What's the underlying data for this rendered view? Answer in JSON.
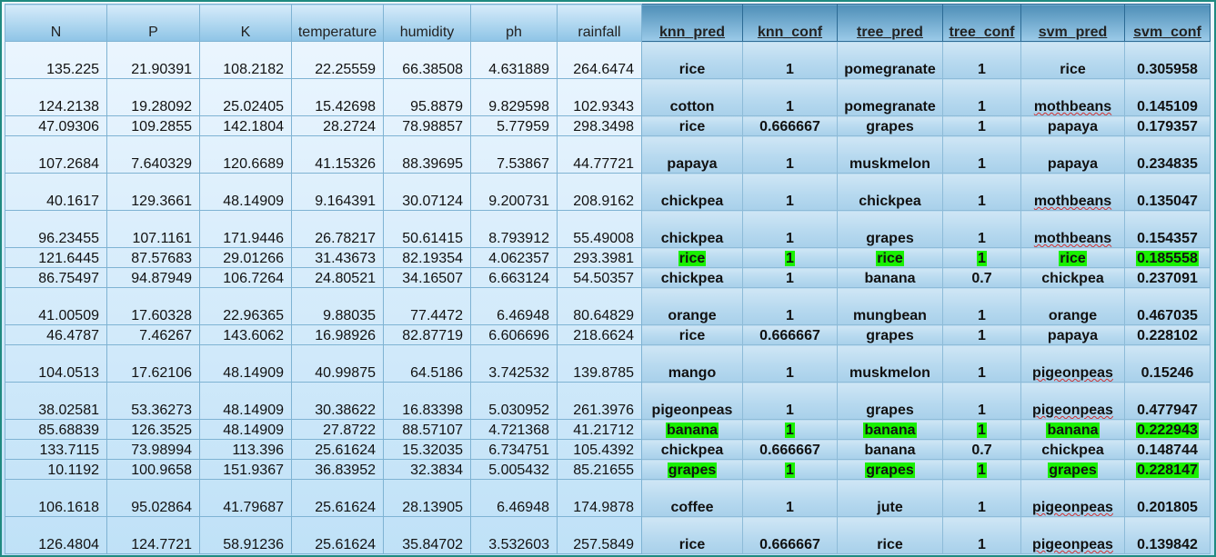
{
  "table": {
    "headers": [
      "N",
      "P",
      "K",
      "temperature",
      "humidity",
      "ph",
      "rainfall",
      "knn_pred",
      "knn_conf",
      "tree_pred",
      "tree_conf",
      "svm_pred",
      "svm_conf"
    ],
    "rows": [
      {
        "cells": [
          "135.225",
          "21.90391",
          "108.2182",
          "22.25559",
          "66.38508",
          "4.631889",
          "264.6474",
          "rice",
          "1",
          "pomegranate",
          "1",
          "rice",
          "0.305958"
        ],
        "tall": true,
        "highlight": false
      },
      {
        "cells": [
          "124.2138",
          "19.28092",
          "25.02405",
          "15.42698",
          "95.8879",
          "9.829598",
          "102.9343",
          "cotton",
          "1",
          "pomegranate",
          "1",
          "mothbeans",
          "0.145109"
        ],
        "tall": true,
        "highlight": false
      },
      {
        "cells": [
          "47.09306",
          "109.2855",
          "142.1804",
          "28.2724",
          "78.98857",
          "5.77959",
          "298.3498",
          "rice",
          "0.666667",
          "grapes",
          "1",
          "papaya",
          "0.179357"
        ],
        "tall": false,
        "highlight": false
      },
      {
        "cells": [
          "107.2684",
          "7.640329",
          "120.6689",
          "41.15326",
          "88.39695",
          "7.53867",
          "44.77721",
          "papaya",
          "1",
          "muskmelon",
          "1",
          "papaya",
          "0.234835"
        ],
        "tall": true,
        "highlight": false
      },
      {
        "cells": [
          "40.1617",
          "129.3661",
          "48.14909",
          "9.164391",
          "30.07124",
          "9.200731",
          "208.9162",
          "chickpea",
          "1",
          "chickpea",
          "1",
          "mothbeans",
          "0.135047"
        ],
        "tall": true,
        "highlight": false
      },
      {
        "cells": [
          "96.23455",
          "107.1161",
          "171.9446",
          "26.78217",
          "50.61415",
          "8.793912",
          "55.49008",
          "chickpea",
          "1",
          "grapes",
          "1",
          "mothbeans",
          "0.154357"
        ],
        "tall": true,
        "highlight": false
      },
      {
        "cells": [
          "121.6445",
          "87.57683",
          "29.01266",
          "31.43673",
          "82.19354",
          "4.062357",
          "293.3981",
          "rice",
          "1",
          "rice",
          "1",
          "rice",
          "0.185558"
        ],
        "tall": false,
        "highlight": true
      },
      {
        "cells": [
          "86.75497",
          "94.87949",
          "106.7264",
          "24.80521",
          "34.16507",
          "6.663124",
          "54.50357",
          "chickpea",
          "1",
          "banana",
          "0.7",
          "chickpea",
          "0.237091"
        ],
        "tall": false,
        "highlight": false
      },
      {
        "cells": [
          "41.00509",
          "17.60328",
          "22.96365",
          "9.88035",
          "77.4472",
          "6.46948",
          "80.64829",
          "orange",
          "1",
          "mungbean",
          "1",
          "orange",
          "0.467035"
        ],
        "tall": true,
        "highlight": false
      },
      {
        "cells": [
          "46.4787",
          "7.46267",
          "143.6062",
          "16.98926",
          "82.87719",
          "6.606696",
          "218.6624",
          "rice",
          "0.666667",
          "grapes",
          "1",
          "papaya",
          "0.228102"
        ],
        "tall": false,
        "highlight": false
      },
      {
        "cells": [
          "104.0513",
          "17.62106",
          "48.14909",
          "40.99875",
          "64.5186",
          "3.742532",
          "139.8785",
          "mango",
          "1",
          "muskmelon",
          "1",
          "pigeonpeas",
          "0.15246"
        ],
        "tall": true,
        "highlight": false
      },
      {
        "cells": [
          "38.02581",
          "53.36273",
          "48.14909",
          "30.38622",
          "16.83398",
          "5.030952",
          "261.3976",
          "pigeonpeas",
          "1",
          "grapes",
          "1",
          "pigeonpeas",
          "0.477947"
        ],
        "tall": true,
        "highlight": false
      },
      {
        "cells": [
          "85.68839",
          "126.3525",
          "48.14909",
          "27.8722",
          "88.57107",
          "4.721368",
          "41.21712",
          "banana",
          "1",
          "banana",
          "1",
          "banana",
          "0.222943"
        ],
        "tall": false,
        "highlight": true
      },
      {
        "cells": [
          "133.7115",
          "73.98994",
          "113.396",
          "25.61624",
          "15.32035",
          "6.734751",
          "105.4392",
          "chickpea",
          "0.666667",
          "banana",
          "0.7",
          "chickpea",
          "0.148744"
        ],
        "tall": false,
        "highlight": false
      },
      {
        "cells": [
          "10.1192",
          "100.9658",
          "151.9367",
          "36.83952",
          "32.3834",
          "5.005432",
          "85.21655",
          "grapes",
          "1",
          "grapes",
          "1",
          "grapes",
          "0.228147"
        ],
        "tall": false,
        "highlight": true
      },
      {
        "cells": [
          "106.1618",
          "95.02864",
          "41.79687",
          "25.61624",
          "28.13905",
          "6.46948",
          "174.9878",
          "coffee",
          "1",
          "jute",
          "1",
          "pigeonpeas",
          "0.201805"
        ],
        "tall": true,
        "highlight": false
      },
      {
        "cells": [
          "126.4804",
          "124.7721",
          "58.91236",
          "25.61624",
          "35.84702",
          "3.532603",
          "257.5849",
          "rice",
          "0.666667",
          "rice",
          "1",
          "pigeonpeas",
          "0.139842"
        ],
        "tall": true,
        "highlight": false
      }
    ]
  },
  "colors": {
    "highlight": "#19f000",
    "frame": "#1f8a80"
  }
}
